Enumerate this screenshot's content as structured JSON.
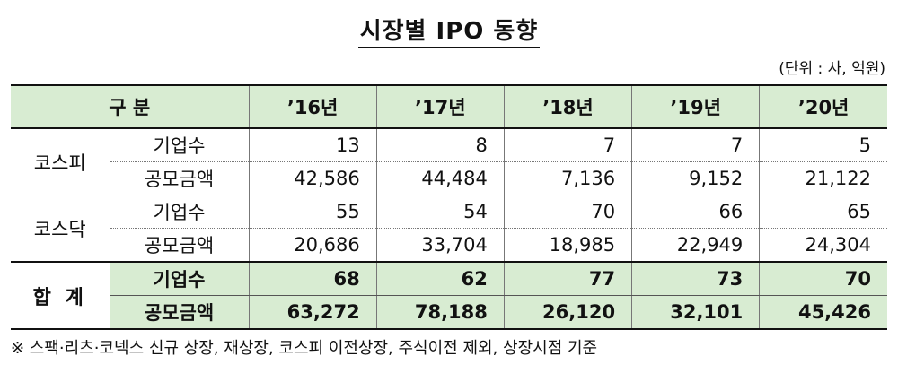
{
  "title": "시장별 IPO 동향",
  "unit": "(단위 : 사, 억원)",
  "header": {
    "category": "구  분",
    "years": [
      "’16년",
      "’17년",
      "’18년",
      "’19년",
      "’20년"
    ]
  },
  "groups": [
    {
      "market": "코스피",
      "rows": [
        {
          "item": "기업수",
          "values": [
            "13",
            "8",
            "7",
            "7",
            "5"
          ]
        },
        {
          "item": "공모금액",
          "values": [
            "42,586",
            "44,484",
            "7,136",
            "9,152",
            "21,122"
          ]
        }
      ]
    },
    {
      "market": "코스닥",
      "rows": [
        {
          "item": "기업수",
          "values": [
            "55",
            "54",
            "70",
            "66",
            "65"
          ]
        },
        {
          "item": "공모금액",
          "values": [
            "20,686",
            "33,704",
            "18,985",
            "22,949",
            "24,304"
          ]
        }
      ]
    },
    {
      "market": "합 계",
      "rows": [
        {
          "item": "기업수",
          "values": [
            "68",
            "62",
            "77",
            "73",
            "70"
          ]
        },
        {
          "item": "공모금액",
          "values": [
            "63,272",
            "78,188",
            "26,120",
            "32,101",
            "45,426"
          ]
        }
      ]
    }
  ],
  "footnote": "※ 스팩·리츠·코넥스 신규 상장, 재상장, 코스피 이전상장, 주식이전 제외, 상장시점 기준"
}
